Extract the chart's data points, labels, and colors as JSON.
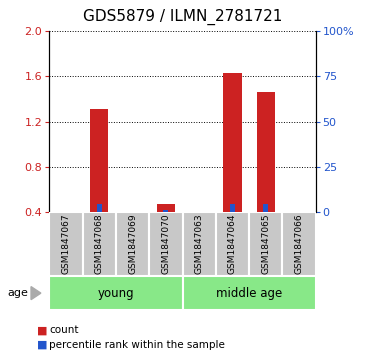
{
  "title": "GDS5879 / ILMN_2781721",
  "samples": [
    "GSM1847067",
    "GSM1847068",
    "GSM1847069",
    "GSM1847070",
    "GSM1847063",
    "GSM1847064",
    "GSM1847065",
    "GSM1847066"
  ],
  "red_values": [
    0.4,
    1.31,
    0.4,
    0.47,
    0.4,
    1.63,
    1.46,
    0.4
  ],
  "blue_values": [
    0.4,
    0.47,
    0.4,
    0.42,
    0.4,
    0.47,
    0.47,
    0.4
  ],
  "ylim_left": [
    0.4,
    2.0
  ],
  "ylim_right": [
    0,
    100
  ],
  "yticks_left": [
    0.4,
    0.8,
    1.2,
    1.6,
    2.0
  ],
  "yticks_right": [
    0,
    25,
    50,
    75,
    100
  ],
  "ytick_labels_right": [
    "0",
    "25",
    "50",
    "75",
    "100%"
  ],
  "groups": [
    {
      "label": "young",
      "start": 0,
      "end": 4
    },
    {
      "label": "middle age",
      "start": 4,
      "end": 8
    }
  ],
  "age_label": "age",
  "legend_items": [
    {
      "label": "count",
      "color": "#cc2222"
    },
    {
      "label": "percentile rank within the sample",
      "color": "#2255cc"
    }
  ],
  "bar_color": "#cc2222",
  "blue_color": "#2255cc",
  "bar_width": 0.55,
  "baseline": 0.4,
  "sample_bg_color": "#c8c8c8",
  "group_bg_color": "#88e888",
  "title_fontsize": 11,
  "tick_fontsize": 8,
  "label_fontsize": 6.5,
  "group_fontsize": 8.5,
  "legend_fontsize": 7.5,
  "age_fontsize": 8
}
